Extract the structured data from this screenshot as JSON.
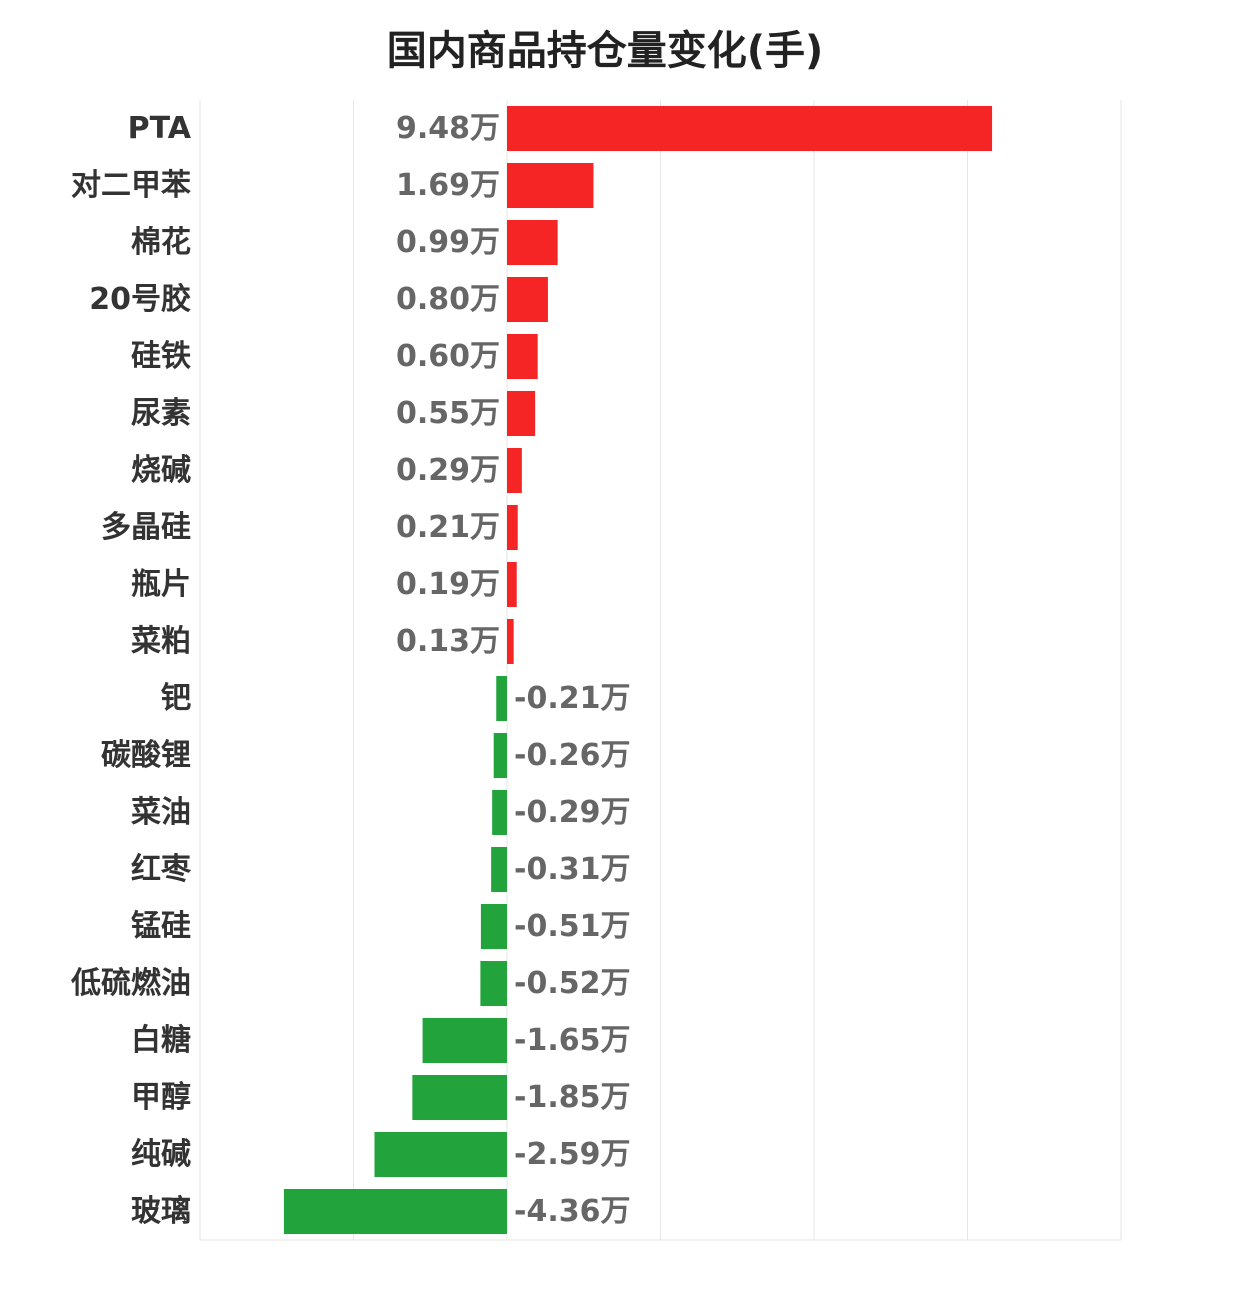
{
  "chart_data": {
    "type": "bar",
    "orientation": "horizontal",
    "title": "国内商品持仓量变化(手)",
    "unit": "万",
    "categories": [
      "PTA",
      "对二甲苯",
      "棉花",
      "20号胶",
      "硅铁",
      "尿素",
      "烧碱",
      "多晶硅",
      "瓶片",
      "菜粕",
      "钯",
      "碳酸锂",
      "菜油",
      "红枣",
      "锰硅",
      "低硫燃油",
      "白糖",
      "甲醇",
      "纯碱",
      "玻璃"
    ],
    "values": [
      9.48,
      1.69,
      0.99,
      0.8,
      0.6,
      0.55,
      0.29,
      0.21,
      0.19,
      0.13,
      -0.21,
      -0.26,
      -0.29,
      -0.31,
      -0.51,
      -0.52,
      -1.65,
      -1.85,
      -2.59,
      -4.36
    ],
    "value_labels": [
      "9.48万",
      "1.69万",
      "0.99万",
      "0.80万",
      "0.60万",
      "0.55万",
      "0.29万",
      "0.21万",
      "0.19万",
      "0.13万",
      "-0.21万",
      "-0.26万",
      "-0.29万",
      "-0.31万",
      "-0.51万",
      "-0.52万",
      "-1.65万",
      "-1.85万",
      "-2.59万",
      "-4.36万"
    ],
    "xlim": [
      -6,
      12
    ],
    "grid": true,
    "colors": {
      "positive": "#f52525",
      "negative": "#22a33b"
    }
  }
}
